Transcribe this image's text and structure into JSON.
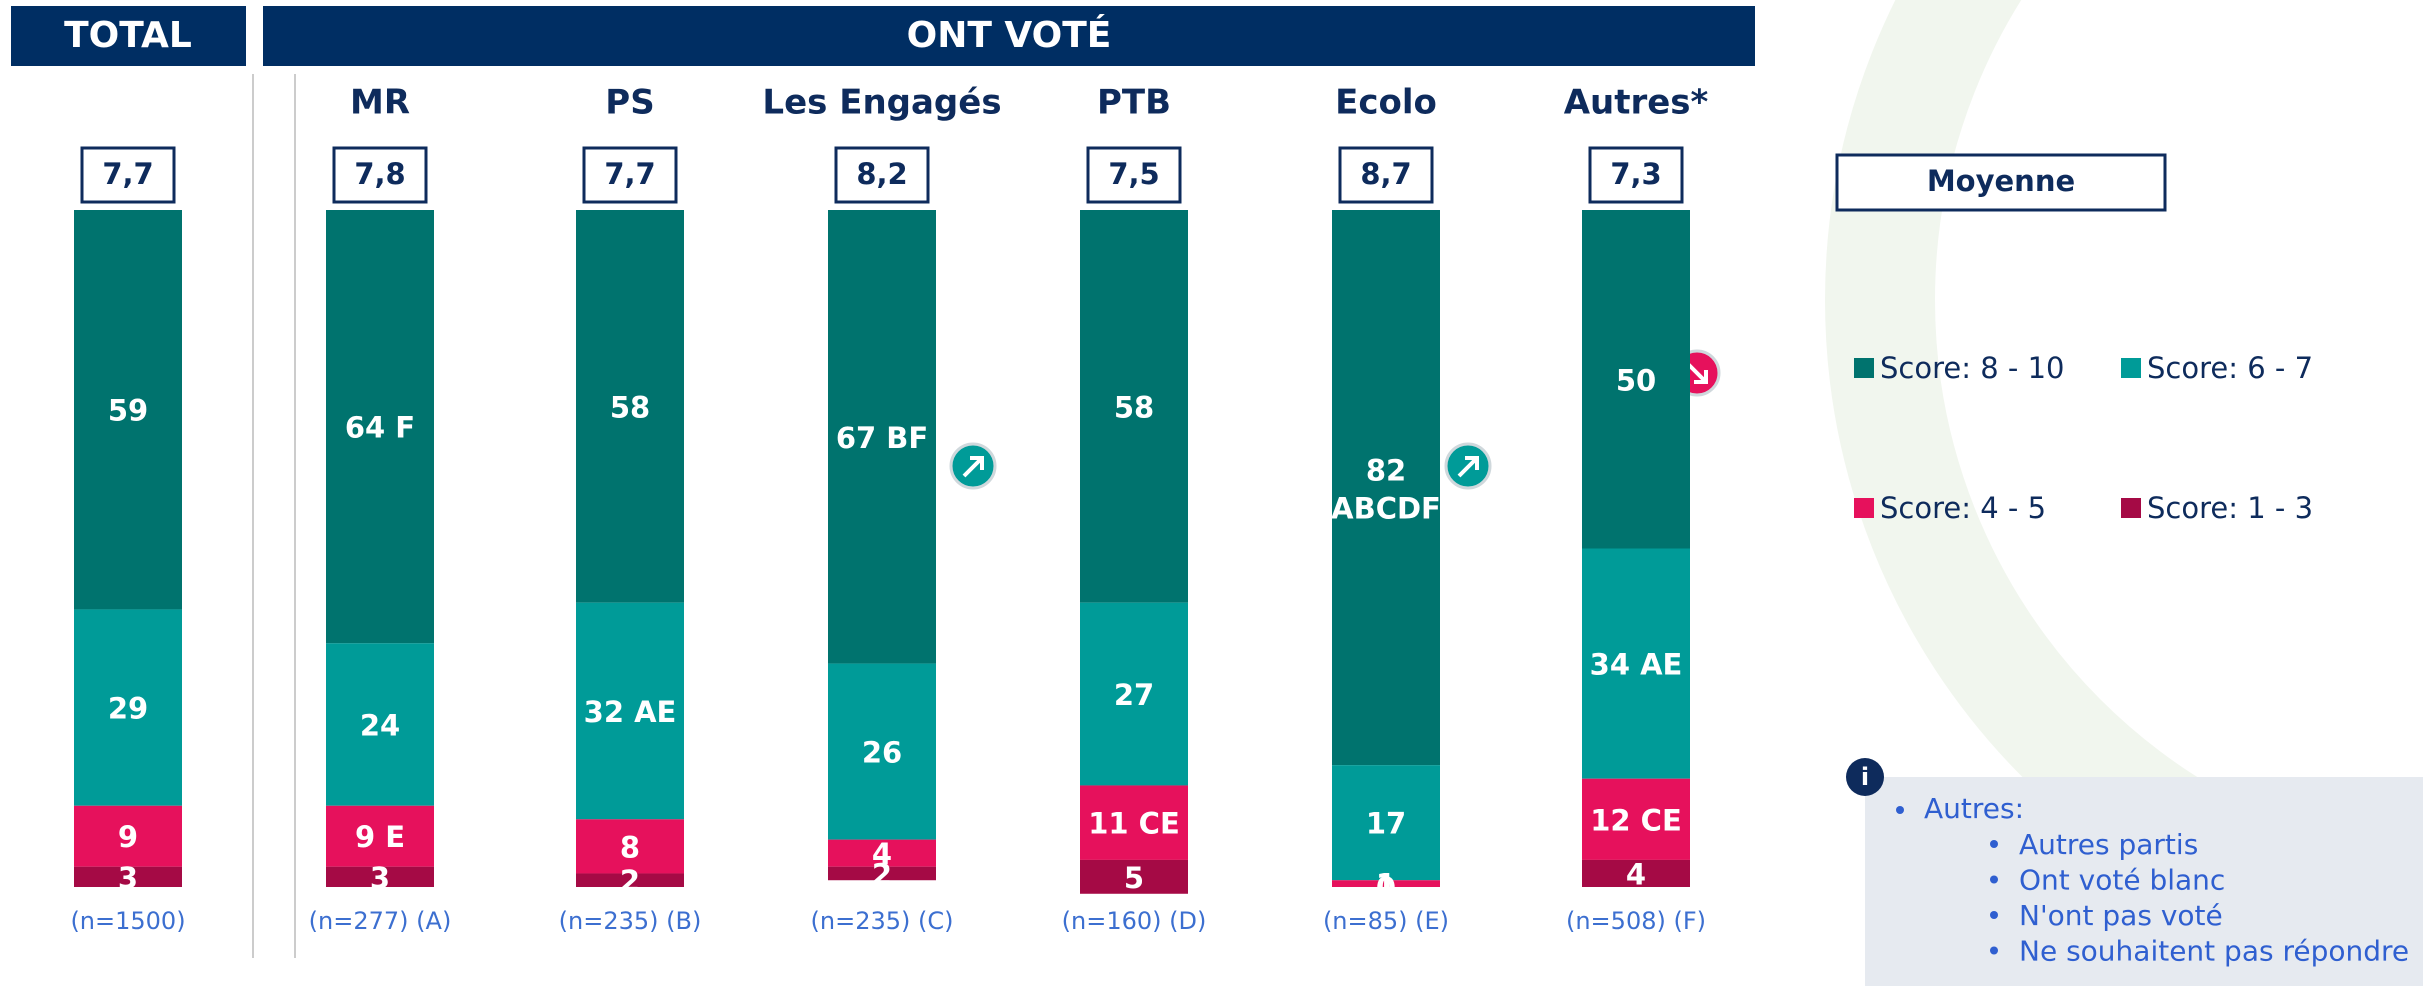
{
  "header": {
    "total": "TOTAL",
    "voted": "ONT VOTÉ"
  },
  "chart_data": {
    "type": "stacked_bar",
    "categories": [
      "",
      "MR",
      "PS",
      "Les Engagés",
      "PTB",
      "Ecolo",
      "Autres*"
    ],
    "averages": [
      "7,7",
      "7,8",
      "7,7",
      "8,2",
      "7,5",
      "8,7",
      "7,3"
    ],
    "sample_labels": [
      "(n=1500)",
      "(n=277) (A)",
      "(n=235) (B)",
      "(n=235) (C)",
      "(n=160) (D)",
      "(n=85) (E)",
      "(n=508) (F)"
    ],
    "series": [
      {
        "name": "Score: 8 - 10",
        "color": "#00736e",
        "values": [
          59,
          64,
          58,
          67,
          58,
          82,
          50
        ],
        "value_labels": [
          "59",
          "64 F",
          "58",
          "67 BF",
          "58",
          "82 ABCDF",
          "50"
        ]
      },
      {
        "name": "Score: 6 - 7",
        "color": "#009b98",
        "values": [
          29,
          24,
          32,
          26,
          27,
          17,
          34
        ],
        "value_labels": [
          "29",
          "24",
          "32 AE",
          "26",
          "27",
          "17",
          "34 AE"
        ]
      },
      {
        "name": "Score: 4 - 5",
        "color": "#e6115c",
        "values": [
          9,
          9,
          8,
          4,
          11,
          1,
          12
        ],
        "value_labels": [
          "9",
          "9 E",
          "8",
          "4",
          "11 CE",
          "1",
          "12 CE"
        ]
      },
      {
        "name": "Score: 1 - 3",
        "color": "#a50a45",
        "values": [
          3,
          3,
          2,
          2,
          5,
          0,
          4
        ],
        "value_labels": [
          "3",
          "3",
          "2",
          "2",
          "5",
          "0",
          "4"
        ]
      }
    ],
    "ylim": [
      0,
      100
    ],
    "legend_title": "Moyenne"
  },
  "info": {
    "title": "Autres:",
    "items": [
      "Autres partis",
      "Ont voté blanc",
      "N'ont pas voté",
      "Ne souhaitent pas répondre"
    ]
  }
}
